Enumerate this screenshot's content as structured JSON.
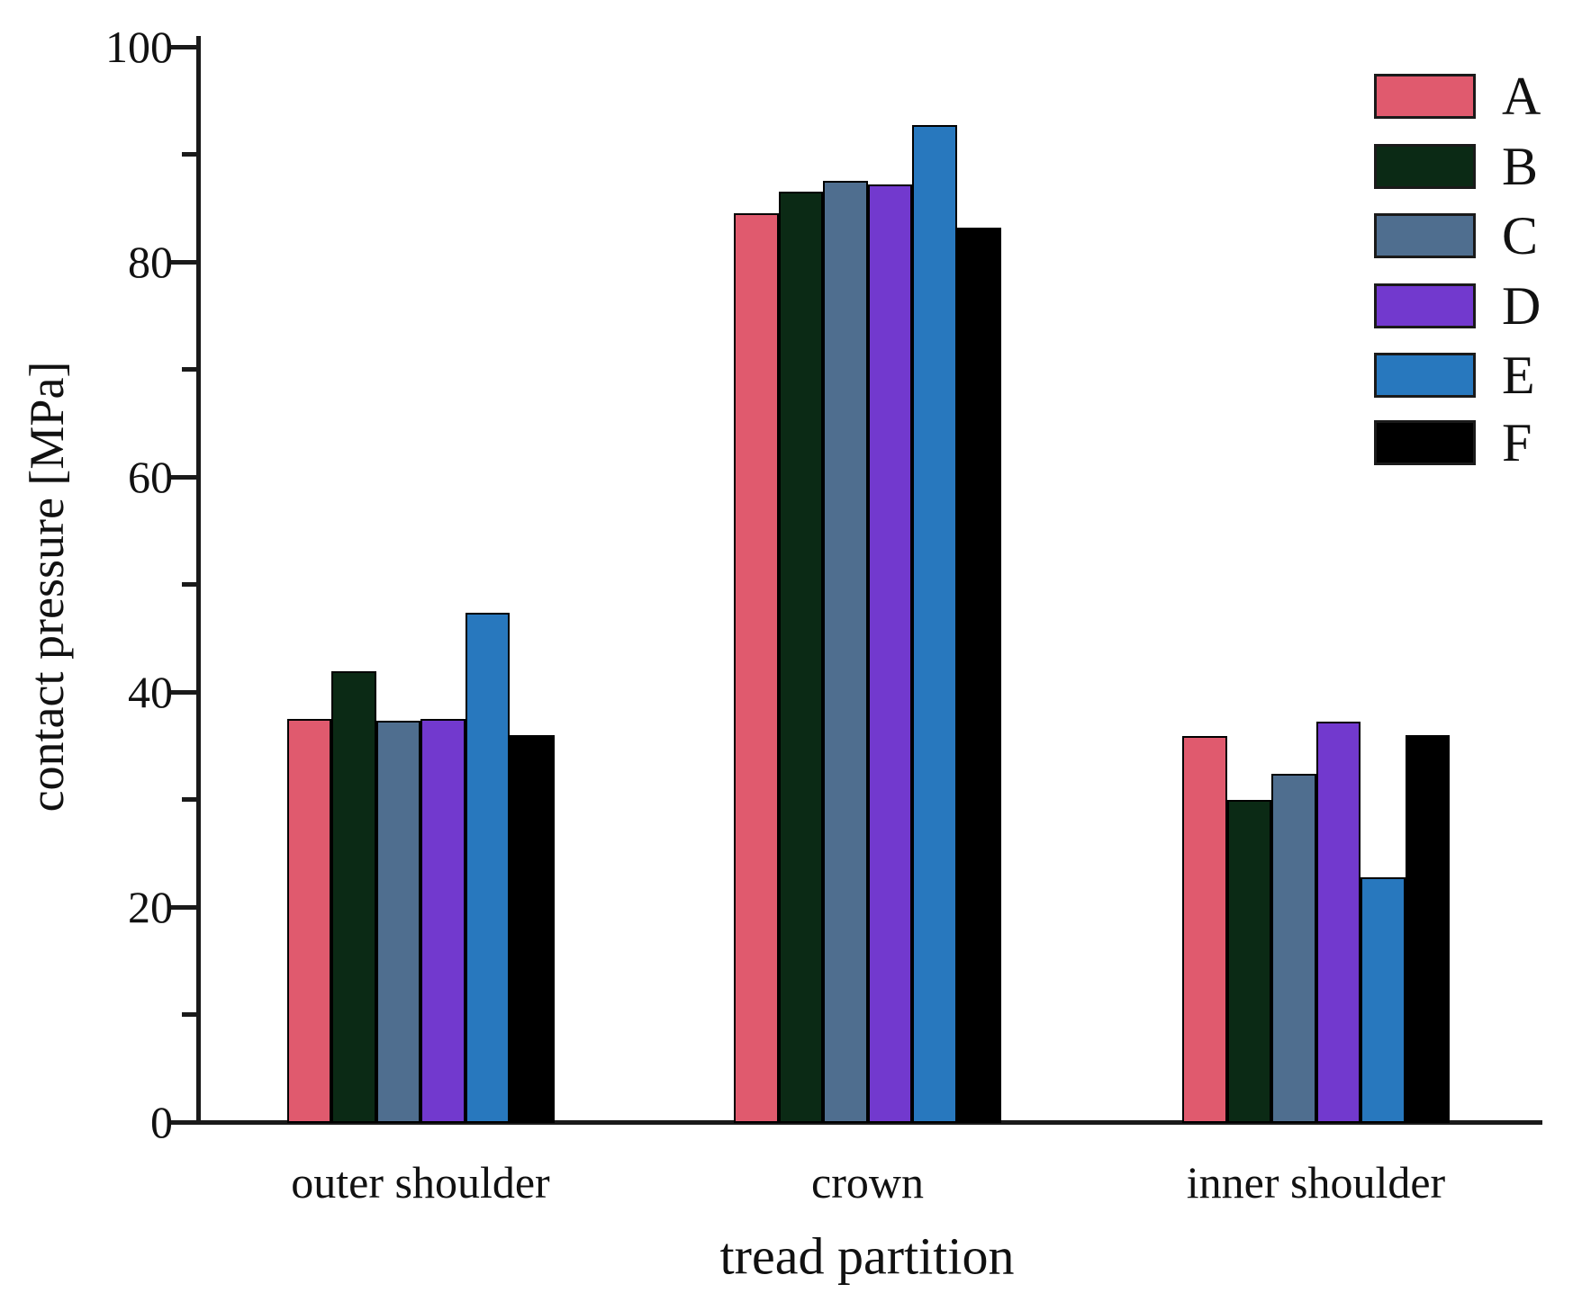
{
  "chart_data": {
    "type": "bar",
    "title": "",
    "xlabel": "tread partition",
    "ylabel": "contact pressure [MPa]",
    "categories": [
      "outer shoulder",
      "crown",
      "inner shoulder"
    ],
    "series": [
      {
        "name": "A",
        "color": "#E05A6E",
        "values": [
          37.5,
          84.5,
          35.9
        ]
      },
      {
        "name": "B",
        "color": "#0B2A15",
        "values": [
          41.9,
          86.5,
          30.0
        ]
      },
      {
        "name": "C",
        "color": "#4F6E8F",
        "values": [
          37.3,
          87.5,
          32.4
        ]
      },
      {
        "name": "D",
        "color": "#7239CE",
        "values": [
          37.5,
          87.2,
          37.2
        ]
      },
      {
        "name": "E",
        "color": "#2878BE",
        "values": [
          47.4,
          92.7,
          22.8
        ]
      },
      {
        "name": "F",
        "color": "#000000",
        "values": [
          36.0,
          83.2,
          36.0
        ]
      }
    ],
    "ylim": [
      0,
      100
    ],
    "yticks": [
      0,
      20,
      40,
      60,
      80,
      100
    ],
    "minor_yticks": [
      10,
      30,
      50,
      70,
      90
    ],
    "legend_position": "upper right",
    "legend_labels": [
      "A",
      "B",
      "C",
      "D",
      "E",
      "F"
    ],
    "grid": false,
    "bar_edge_color": "#000000",
    "axis_color": "#1a1a1a"
  }
}
